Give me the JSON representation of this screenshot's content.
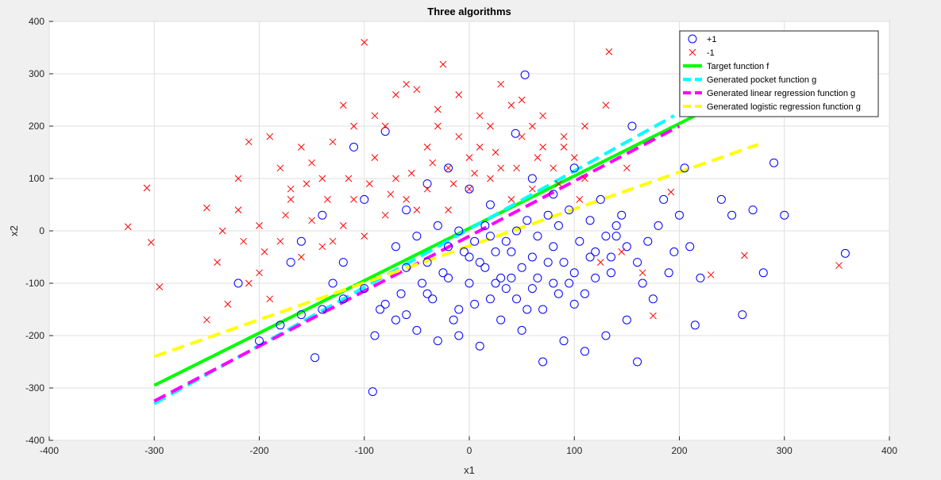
{
  "chart_data": {
    "type": "scatter",
    "title": "Three algorithms",
    "xlabel": "x1",
    "ylabel": "x2",
    "xlim": [
      -400,
      400
    ],
    "ylim": [
      -400,
      400
    ],
    "xticks": [
      -400,
      -300,
      -200,
      -100,
      0,
      100,
      200,
      300,
      400
    ],
    "yticks": [
      -400,
      -300,
      -200,
      -100,
      0,
      100,
      200,
      300,
      400
    ],
    "grid": true,
    "legend_position": "top-right",
    "background": "#ffffff",
    "series": [
      {
        "name": "+1",
        "kind": "points",
        "marker": "circle",
        "color": "#0000ff",
        "points": [
          [
            -147,
            -242
          ],
          [
            -92,
            -307
          ],
          [
            -100,
            -110
          ],
          [
            -80,
            -140
          ],
          [
            -60,
            -160
          ],
          [
            -40,
            -120
          ],
          [
            -20,
            -90
          ],
          [
            -10,
            -150
          ],
          [
            0,
            -100
          ],
          [
            10,
            -60
          ],
          [
            20,
            -130
          ],
          [
            30,
            -90
          ],
          [
            40,
            -40
          ],
          [
            50,
            -70
          ],
          [
            60,
            -110
          ],
          [
            70,
            -150
          ],
          [
            80,
            -100
          ],
          [
            90,
            -60
          ],
          [
            100,
            -80
          ],
          [
            110,
            -120
          ],
          [
            120,
            -40
          ],
          [
            130,
            -10
          ],
          [
            140,
            10
          ],
          [
            150,
            -30
          ],
          [
            160,
            -60
          ],
          [
            170,
            -20
          ],
          [
            180,
            10
          ],
          [
            190,
            -80
          ],
          [
            200,
            30
          ],
          [
            210,
            -30
          ],
          [
            220,
            -90
          ],
          [
            240,
            60
          ],
          [
            250,
            30
          ],
          [
            260,
            -160
          ],
          [
            270,
            40
          ],
          [
            280,
            -80
          ],
          [
            290,
            130
          ],
          [
            300,
            30
          ],
          [
            358,
            -43
          ],
          [
            53,
            298
          ],
          [
            44,
            186
          ],
          [
            -110,
            160
          ],
          [
            -80,
            190
          ],
          [
            -70,
            -30
          ],
          [
            -50,
            -10
          ],
          [
            -30,
            10
          ],
          [
            -10,
            0
          ],
          [
            5,
            -20
          ],
          [
            15,
            10
          ],
          [
            25,
            -40
          ],
          [
            35,
            -20
          ],
          [
            45,
            0
          ],
          [
            55,
            20
          ],
          [
            65,
            -10
          ],
          [
            75,
            30
          ],
          [
            85,
            10
          ],
          [
            95,
            40
          ],
          [
            105,
            -20
          ],
          [
            115,
            20
          ],
          [
            125,
            60
          ],
          [
            135,
            -50
          ],
          [
            145,
            30
          ],
          [
            155,
            200
          ],
          [
            165,
            -100
          ],
          [
            175,
            -130
          ],
          [
            185,
            60
          ],
          [
            195,
            -40
          ],
          [
            205,
            120
          ],
          [
            215,
            -180
          ],
          [
            -200,
            -210
          ],
          [
            -180,
            -180
          ],
          [
            -160,
            -160
          ],
          [
            -140,
            -150
          ],
          [
            -120,
            -130
          ],
          [
            -130,
            -100
          ],
          [
            -90,
            -200
          ],
          [
            -70,
            -170
          ],
          [
            -50,
            -190
          ],
          [
            -30,
            -210
          ],
          [
            -10,
            -200
          ],
          [
            10,
            -220
          ],
          [
            30,
            -170
          ],
          [
            50,
            -190
          ],
          [
            70,
            -250
          ],
          [
            90,
            -210
          ],
          [
            110,
            -230
          ],
          [
            130,
            -200
          ],
          [
            150,
            -170
          ],
          [
            160,
            -250
          ],
          [
            -220,
            -100
          ],
          [
            -170,
            -60
          ],
          [
            -60,
            -70
          ],
          [
            -40,
            -60
          ],
          [
            -20,
            -30
          ],
          [
            0,
            -50
          ],
          [
            20,
            -10
          ],
          [
            40,
            -90
          ],
          [
            60,
            -50
          ],
          [
            80,
            -30
          ],
          [
            100,
            -140
          ],
          [
            120,
            -90
          ],
          [
            140,
            -10
          ],
          [
            -100,
            60
          ],
          [
            -60,
            40
          ],
          [
            -40,
            90
          ],
          [
            -20,
            120
          ],
          [
            0,
            80
          ],
          [
            20,
            50
          ],
          [
            60,
            100
          ],
          [
            80,
            70
          ],
          [
            100,
            120
          ],
          [
            -140,
            30
          ],
          [
            -160,
            -20
          ],
          [
            -120,
            -60
          ],
          [
            -5,
            -40
          ],
          [
            15,
            -70
          ],
          [
            -25,
            -80
          ],
          [
            35,
            -110
          ],
          [
            45,
            -130
          ],
          [
            65,
            -90
          ],
          [
            85,
            -120
          ],
          [
            -35,
            -130
          ],
          [
            -15,
            -170
          ],
          [
            5,
            -140
          ],
          [
            25,
            -100
          ],
          [
            55,
            -150
          ],
          [
            75,
            -60
          ],
          [
            95,
            -100
          ],
          [
            115,
            -50
          ],
          [
            135,
            -80
          ],
          [
            -45,
            -100
          ],
          [
            -65,
            -120
          ],
          [
            -85,
            -150
          ]
        ]
      },
      {
        "name": "-1",
        "kind": "points",
        "marker": "x",
        "color": "#ff0000",
        "points": [
          [
            -325,
            8
          ],
          [
            -307,
            82
          ],
          [
            -303,
            -22
          ],
          [
            -295,
            -107
          ],
          [
            -250,
            44
          ],
          [
            -250,
            -170
          ],
          [
            -230,
            -140
          ],
          [
            -220,
            100
          ],
          [
            -210,
            170
          ],
          [
            -200,
            -80
          ],
          [
            -190,
            180
          ],
          [
            -180,
            120
          ],
          [
            -170,
            60
          ],
          [
            -160,
            160
          ],
          [
            -150,
            20
          ],
          [
            -140,
            100
          ],
          [
            -130,
            -20
          ],
          [
            -120,
            240
          ],
          [
            -110,
            60
          ],
          [
            -100,
            360
          ],
          [
            -90,
            140
          ],
          [
            -80,
            200
          ],
          [
            -70,
            100
          ],
          [
            -60,
            280
          ],
          [
            -50,
            40
          ],
          [
            -40,
            160
          ],
          [
            -30,
            232
          ],
          [
            -25,
            318
          ],
          [
            -20,
            120
          ],
          [
            -10,
            180
          ],
          [
            0,
            80
          ],
          [
            10,
            160
          ],
          [
            20,
            100
          ],
          [
            30,
            120
          ],
          [
            40,
            60
          ],
          [
            50,
            180
          ],
          [
            60,
            80
          ],
          [
            70,
            220
          ],
          [
            80,
            120
          ],
          [
            90,
            160
          ],
          [
            100,
            140
          ],
          [
            110,
            200
          ],
          [
            130,
            240
          ],
          [
            133,
            342
          ],
          [
            150,
            120
          ],
          [
            175,
            -162
          ],
          [
            192,
            74
          ],
          [
            230,
            -84
          ],
          [
            262,
            -47
          ],
          [
            352,
            -66
          ],
          [
            -220,
            40
          ],
          [
            -200,
            10
          ],
          [
            -180,
            -20
          ],
          [
            -160,
            -50
          ],
          [
            -140,
            -30
          ],
          [
            -120,
            10
          ],
          [
            -100,
            -10
          ],
          [
            -80,
            30
          ],
          [
            -60,
            60
          ],
          [
            -40,
            80
          ],
          [
            -20,
            40
          ],
          [
            0,
            140
          ],
          [
            20,
            200
          ],
          [
            40,
            240
          ],
          [
            60,
            200
          ],
          [
            -240,
            -60
          ],
          [
            -210,
            -100
          ],
          [
            -190,
            -130
          ],
          [
            -170,
            80
          ],
          [
            -150,
            130
          ],
          [
            -130,
            170
          ],
          [
            -110,
            200
          ],
          [
            -90,
            220
          ],
          [
            -70,
            260
          ],
          [
            -50,
            270
          ],
          [
            -30,
            200
          ],
          [
            -10,
            260
          ],
          [
            10,
            220
          ],
          [
            30,
            280
          ],
          [
            50,
            250
          ],
          [
            70,
            160
          ],
          [
            90,
            180
          ],
          [
            110,
            100
          ],
          [
            -115,
            100
          ],
          [
            -95,
            90
          ],
          [
            -75,
            70
          ],
          [
            -55,
            110
          ],
          [
            -35,
            130
          ],
          [
            -15,
            90
          ],
          [
            5,
            110
          ],
          [
            25,
            150
          ],
          [
            45,
            120
          ],
          [
            65,
            140
          ],
          [
            85,
            90
          ],
          [
            105,
            60
          ],
          [
            125,
            -60
          ],
          [
            145,
            -40
          ],
          [
            165,
            -80
          ],
          [
            -135,
            60
          ],
          [
            -155,
            90
          ],
          [
            -175,
            30
          ],
          [
            -195,
            -40
          ],
          [
            -215,
            -20
          ],
          [
            -235,
            0
          ]
        ]
      },
      {
        "name": "Target function f",
        "kind": "line",
        "color": "#00ff00",
        "dash": "solid",
        "x": [
          -300,
          220
        ],
        "y": [
          -295,
          225
        ]
      },
      {
        "name": "Generated pocket function g",
        "kind": "line",
        "color": "#00ffff",
        "dash": "dashed",
        "x": [
          -300,
          195
        ],
        "y": [
          -330,
          220
        ]
      },
      {
        "name": "Generated linear regression function g",
        "kind": "line",
        "color": "#ff00ff",
        "dash": "dashed",
        "x": [
          -300,
          200
        ],
        "y": [
          -325,
          200
        ]
      },
      {
        "name": "Generated logistic regression function g",
        "kind": "line",
        "color": "#ffff00",
        "dash": "dashed",
        "x": [
          -300,
          275
        ],
        "y": [
          -240,
          165
        ]
      }
    ]
  }
}
